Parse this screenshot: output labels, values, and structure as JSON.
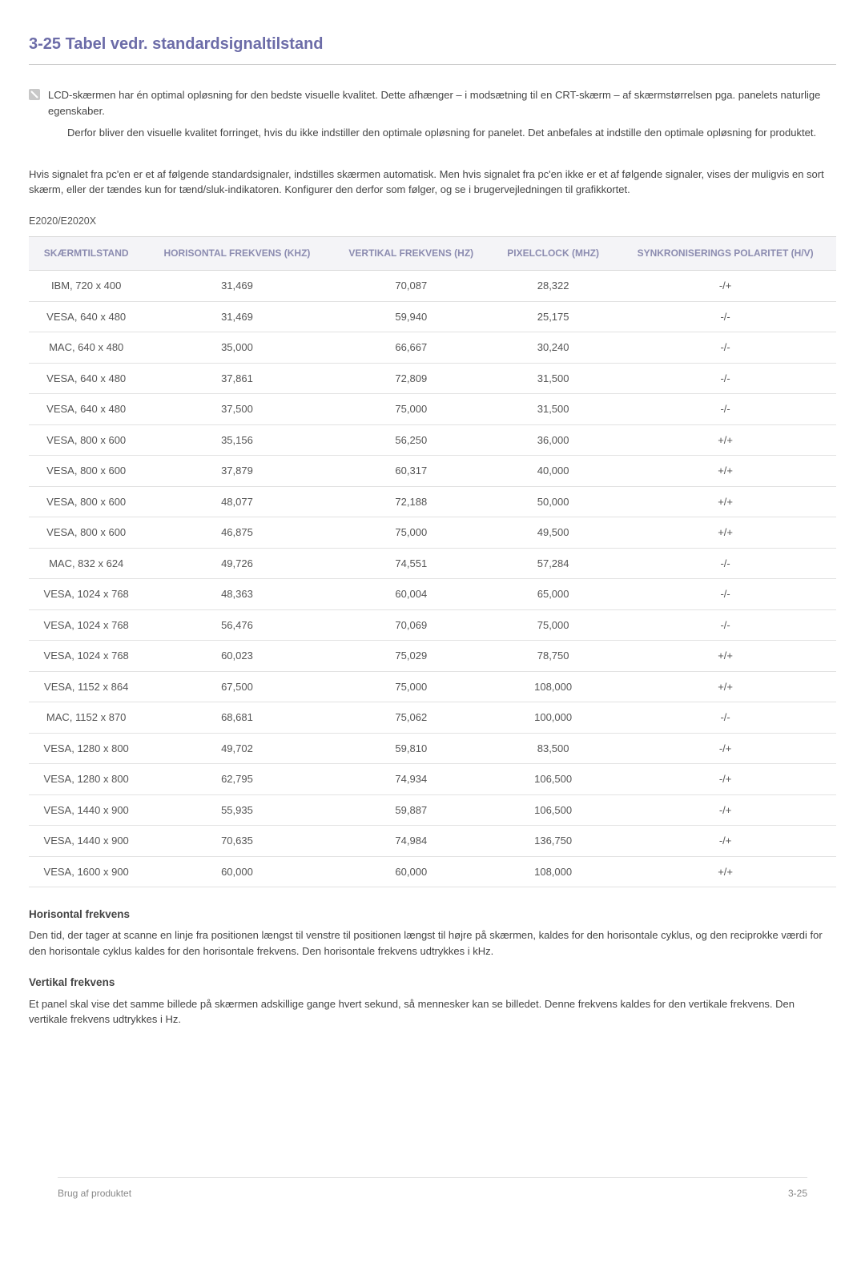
{
  "heading": "3-25  Tabel vedr. standardsignaltilstand",
  "note": {
    "line1": "LCD-skærmen har én optimal opløsning for den bedste visuelle kvalitet. Dette afhænger – i modsætning til en CRT-skærm – af skærmstørrelsen pga. panelets naturlige egenskaber.",
    "line2": "Derfor bliver den visuelle kvalitet forringet, hvis du ikke indstiller den optimale opløsning for panelet. Det anbefales at indstille den optimale opløsning for produktet."
  },
  "intro": "Hvis signalet fra pc'en er et af følgende standardsignaler, indstilles skærmen automatisk. Men hvis signalet fra pc'en ikke er et af følgende signaler, vises der muligvis en sort skærm, eller der tændes kun for tænd/sluk-indikatoren. Konfigurer den derfor som følger, og se i brugervejledningen til grafikkortet.",
  "model_label": "E2020/E2020X",
  "table": {
    "columns": [
      "SKÆRMTILSTAND",
      "HORISONTAL FREKVENS (KHZ)",
      "VERTIKAL FREKVENS (HZ)",
      "PIXELCLOCK (MHZ)",
      "SYNKRONISERINGS POLARITET (H/V)"
    ],
    "rows": [
      [
        "IBM, 720 x 400",
        "31,469",
        "70,087",
        "28,322",
        "-/+"
      ],
      [
        "VESA, 640 x 480",
        "31,469",
        "59,940",
        "25,175",
        "-/-"
      ],
      [
        "MAC, 640 x 480",
        "35,000",
        "66,667",
        "30,240",
        "-/-"
      ],
      [
        "VESA, 640 x 480",
        "37,861",
        "72,809",
        "31,500",
        "-/-"
      ],
      [
        "VESA, 640 x 480",
        "37,500",
        "75,000",
        "31,500",
        "-/-"
      ],
      [
        "VESA, 800 x 600",
        "35,156",
        "56,250",
        "36,000",
        "+/+"
      ],
      [
        "VESA, 800 x 600",
        "37,879",
        "60,317",
        "40,000",
        "+/+"
      ],
      [
        "VESA, 800 x 600",
        "48,077",
        "72,188",
        "50,000",
        "+/+"
      ],
      [
        "VESA, 800 x 600",
        "46,875",
        "75,000",
        "49,500",
        "+/+"
      ],
      [
        "MAC, 832 x 624",
        "49,726",
        "74,551",
        "57,284",
        "-/-"
      ],
      [
        "VESA, 1024 x 768",
        "48,363",
        "60,004",
        "65,000",
        "-/-"
      ],
      [
        "VESA, 1024 x 768",
        "56,476",
        "70,069",
        "75,000",
        "-/-"
      ],
      [
        "VESA, 1024 x 768",
        "60,023",
        "75,029",
        "78,750",
        "+/+"
      ],
      [
        "VESA, 1152 x 864",
        "67,500",
        "75,000",
        "108,000",
        "+/+"
      ],
      [
        "MAC, 1152 x 870",
        "68,681",
        "75,062",
        "100,000",
        "-/-"
      ],
      [
        "VESA, 1280 x 800",
        "49,702",
        "59,810",
        "83,500",
        "-/+"
      ],
      [
        "VESA, 1280 x 800",
        "62,795",
        "74,934",
        "106,500",
        "-/+"
      ],
      [
        "VESA, 1440 x 900",
        "55,935",
        "59,887",
        "106,500",
        "-/+"
      ],
      [
        "VESA, 1440 x 900",
        "70,635",
        "74,984",
        "136,750",
        "-/+"
      ],
      [
        "VESA, 1600 x 900",
        "60,000",
        "60,000",
        "108,000",
        "+/+"
      ]
    ]
  },
  "hf_head": "Horisontal frekvens",
  "hf_body": "Den tid, der tager at scanne en linje fra positionen længst til venstre til positionen længst til højre på skærmen, kaldes for den horisontale cyklus, og den reciprokke værdi for den horisontale cyklus kaldes for den horisontale frekvens. Den horisontale frekvens udtrykkes i kHz.",
  "vf_head": "Vertikal frekvens",
  "vf_body": "Et panel skal vise det samme billede på skærmen adskillige gange hvert sekund, så mennesker kan se billedet. Denne frekvens kaldes for den vertikale frekvens. Den vertikale frekvens udtrykkes i Hz.",
  "footer_left": "Brug af produktet",
  "footer_right": "3-25",
  "colors": {
    "heading": "#6c6ca8",
    "th_text": "#8c8cb0",
    "th_bg": "#f4f4f7",
    "border": "#e2e2e2",
    "body_text": "#444444"
  }
}
